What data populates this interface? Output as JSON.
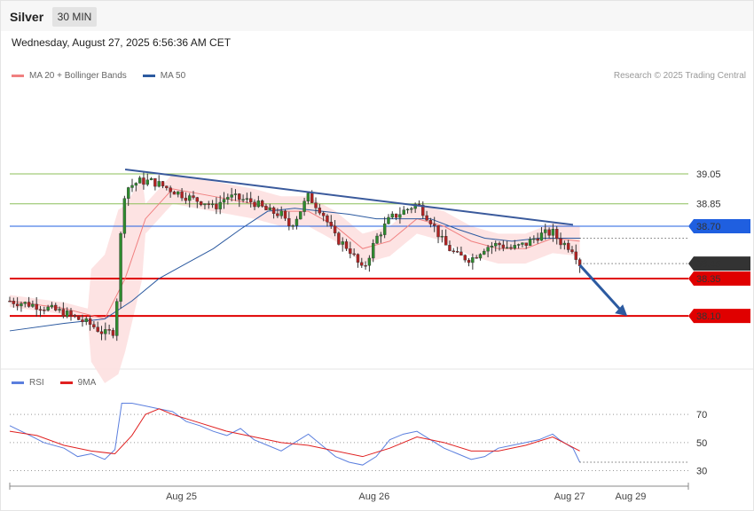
{
  "header": {
    "symbol": "Silver",
    "timeframe": "30 MIN"
  },
  "datetime": "Wednesday, August 27, 2025 6:56:36 AM CET",
  "legend_main": [
    {
      "label": "MA 20 + Bollinger Bands",
      "color": "#f08080"
    },
    {
      "label": "MA 50",
      "color": "#2c5aa0"
    }
  ],
  "copyright": "Research © 2025 Trading Central",
  "legend_rsi": [
    {
      "label": "RSI",
      "color": "#5b7fde"
    },
    {
      "label": "9MA",
      "color": "#e02020"
    }
  ],
  "chart_data": [
    {
      "type": "candlestick",
      "title": "Silver 30 MIN",
      "x_ticks": [
        "Aug 25",
        "Aug 26",
        "Aug 27",
        "Aug 29"
      ],
      "ylim": [
        37.78,
        39.62
      ],
      "levels": [
        {
          "value": 39.05,
          "label": "39.05",
          "kind": "resistance",
          "color": "#8cbf5a"
        },
        {
          "value": 38.85,
          "label": "38.85",
          "kind": "resistance",
          "color": "#8cbf5a"
        },
        {
          "value": 38.7,
          "label": "38.70",
          "kind": "pivot",
          "color": "#1f5fe0"
        },
        {
          "value": 38.35,
          "label": "38.35",
          "kind": "support",
          "color": "#e00000"
        },
        {
          "value": 38.1,
          "label": "38.10",
          "kind": "support",
          "color": "#e00000"
        }
      ],
      "last_price": {
        "value": 38.45,
        "label": "38.45"
      },
      "trendline": {
        "from": [
          0.17,
          39.08
        ],
        "to": [
          0.83,
          38.71
        ]
      },
      "forecast_arrow": {
        "from": [
          0.84,
          38.44
        ],
        "to": [
          0.91,
          38.1
        ]
      },
      "price_path": [
        [
          0.0,
          38.2
        ],
        [
          0.04,
          38.17
        ],
        [
          0.08,
          38.12
        ],
        [
          0.12,
          38.04
        ],
        [
          0.14,
          37.98
        ],
        [
          0.155,
          38.0
        ],
        [
          0.165,
          38.75
        ],
        [
          0.17,
          38.95
        ],
        [
          0.19,
          39.0
        ],
        [
          0.21,
          39.0
        ],
        [
          0.24,
          38.94
        ],
        [
          0.27,
          38.88
        ],
        [
          0.29,
          38.86
        ],
        [
          0.3,
          38.82
        ],
        [
          0.32,
          38.9
        ],
        [
          0.34,
          38.88
        ],
        [
          0.36,
          38.86
        ],
        [
          0.38,
          38.8
        ],
        [
          0.4,
          38.78
        ],
        [
          0.41,
          38.7
        ],
        [
          0.42,
          38.74
        ],
        [
          0.44,
          38.9
        ],
        [
          0.46,
          38.8
        ],
        [
          0.48,
          38.62
        ],
        [
          0.5,
          38.55
        ],
        [
          0.52,
          38.4
        ],
        [
          0.54,
          38.62
        ],
        [
          0.56,
          38.75
        ],
        [
          0.58,
          38.8
        ],
        [
          0.6,
          38.85
        ],
        [
          0.62,
          38.74
        ],
        [
          0.64,
          38.58
        ],
        [
          0.66,
          38.5
        ],
        [
          0.68,
          38.48
        ],
        [
          0.7,
          38.56
        ],
        [
          0.72,
          38.58
        ],
        [
          0.74,
          38.55
        ],
        [
          0.76,
          38.58
        ],
        [
          0.78,
          38.64
        ],
        [
          0.8,
          38.66
        ],
        [
          0.81,
          38.6
        ],
        [
          0.83,
          38.55
        ],
        [
          0.84,
          38.45
        ]
      ],
      "ma20_path": [
        [
          0.0,
          38.2
        ],
        [
          0.08,
          38.15
        ],
        [
          0.14,
          38.08
        ],
        [
          0.17,
          38.35
        ],
        [
          0.2,
          38.75
        ],
        [
          0.24,
          38.95
        ],
        [
          0.3,
          38.9
        ],
        [
          0.36,
          38.85
        ],
        [
          0.4,
          38.8
        ],
        [
          0.44,
          38.8
        ],
        [
          0.48,
          38.7
        ],
        [
          0.52,
          38.55
        ],
        [
          0.56,
          38.6
        ],
        [
          0.6,
          38.75
        ],
        [
          0.64,
          38.7
        ],
        [
          0.68,
          38.6
        ],
        [
          0.72,
          38.55
        ],
        [
          0.76,
          38.55
        ],
        [
          0.8,
          38.62
        ],
        [
          0.84,
          38.6
        ]
      ],
      "ma50_path": [
        [
          0.0,
          38.0
        ],
        [
          0.08,
          38.05
        ],
        [
          0.14,
          38.08
        ],
        [
          0.18,
          38.2
        ],
        [
          0.22,
          38.35
        ],
        [
          0.26,
          38.45
        ],
        [
          0.3,
          38.55
        ],
        [
          0.34,
          38.68
        ],
        [
          0.38,
          38.8
        ],
        [
          0.42,
          38.82
        ],
        [
          0.46,
          38.8
        ],
        [
          0.5,
          38.78
        ],
        [
          0.54,
          38.75
        ],
        [
          0.58,
          38.75
        ],
        [
          0.62,
          38.75
        ],
        [
          0.66,
          38.68
        ],
        [
          0.7,
          38.62
        ],
        [
          0.74,
          38.6
        ],
        [
          0.78,
          38.62
        ],
        [
          0.84,
          38.62
        ]
      ]
    },
    {
      "type": "line",
      "title": "RSI",
      "ylim": [
        24,
        84
      ],
      "ref_lines": [
        70,
        50,
        30
      ],
      "series": [
        {
          "name": "RSI",
          "color": "#5b7fde",
          "points": [
            [
              0.0,
              62
            ],
            [
              0.03,
              55
            ],
            [
              0.05,
              50
            ],
            [
              0.08,
              46
            ],
            [
              0.1,
              40
            ],
            [
              0.12,
              42
            ],
            [
              0.14,
              38
            ],
            [
              0.155,
              45
            ],
            [
              0.165,
              78
            ],
            [
              0.18,
              78
            ],
            [
              0.2,
              76
            ],
            [
              0.22,
              74
            ],
            [
              0.24,
              72
            ],
            [
              0.26,
              65
            ],
            [
              0.28,
              62
            ],
            [
              0.3,
              58
            ],
            [
              0.32,
              55
            ],
            [
              0.34,
              60
            ],
            [
              0.36,
              52
            ],
            [
              0.38,
              48
            ],
            [
              0.4,
              44
            ],
            [
              0.42,
              50
            ],
            [
              0.44,
              56
            ],
            [
              0.46,
              48
            ],
            [
              0.48,
              40
            ],
            [
              0.5,
              36
            ],
            [
              0.52,
              34
            ],
            [
              0.54,
              40
            ],
            [
              0.56,
              52
            ],
            [
              0.58,
              56
            ],
            [
              0.6,
              58
            ],
            [
              0.62,
              52
            ],
            [
              0.64,
              46
            ],
            [
              0.66,
              42
            ],
            [
              0.68,
              38
            ],
            [
              0.7,
              40
            ],
            [
              0.72,
              46
            ],
            [
              0.74,
              48
            ],
            [
              0.76,
              50
            ],
            [
              0.78,
              52
            ],
            [
              0.8,
              56
            ],
            [
              0.81,
              52
            ],
            [
              0.83,
              46
            ],
            [
              0.84,
              36
            ]
          ]
        },
        {
          "name": "9MA",
          "color": "#e02020",
          "points": [
            [
              0.0,
              58
            ],
            [
              0.04,
              55
            ],
            [
              0.08,
              48
            ],
            [
              0.12,
              44
            ],
            [
              0.155,
              42
            ],
            [
              0.18,
              55
            ],
            [
              0.2,
              70
            ],
            [
              0.22,
              74
            ],
            [
              0.24,
              70
            ],
            [
              0.28,
              64
            ],
            [
              0.32,
              58
            ],
            [
              0.36,
              54
            ],
            [
              0.4,
              50
            ],
            [
              0.44,
              48
            ],
            [
              0.48,
              44
            ],
            [
              0.52,
              40
            ],
            [
              0.56,
              46
            ],
            [
              0.6,
              54
            ],
            [
              0.64,
              50
            ],
            [
              0.68,
              44
            ],
            [
              0.72,
              44
            ],
            [
              0.76,
              48
            ],
            [
              0.8,
              54
            ],
            [
              0.84,
              44
            ]
          ]
        }
      ]
    }
  ]
}
